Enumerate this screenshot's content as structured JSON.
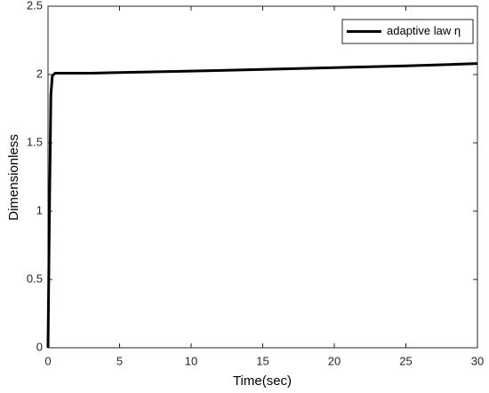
{
  "chart_data": {
    "type": "line",
    "x_label": "Time(sec)",
    "y_label": "Dimensionless",
    "x": [
      0,
      0.1,
      0.2,
      0.3,
      0.5,
      1,
      3,
      5,
      10,
      15,
      20,
      25,
      30
    ],
    "series": [
      {
        "name": "adaptive law η",
        "color": "#000000",
        "values": [
          0,
          1.0,
          1.85,
          1.99,
          2.01,
          2.01,
          2.01,
          2.015,
          2.025,
          2.037,
          2.05,
          2.063,
          2.08
        ]
      }
    ],
    "xlim": [
      0,
      30
    ],
    "xticks": [
      0,
      5,
      10,
      15,
      20,
      25,
      30
    ],
    "ylim": [
      0,
      2.5
    ],
    "yticks": [
      0,
      0.5,
      1,
      1.5,
      2,
      2.5
    ],
    "legend": "upper right",
    "grid": false
  }
}
